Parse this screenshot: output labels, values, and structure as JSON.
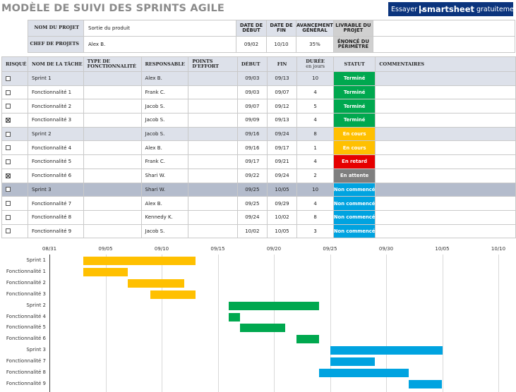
{
  "title": "MODÈLE DE SUIVI DES SPRINTS AGILE",
  "banner": {
    "prefix": "Essayer",
    "brand": "smartsheet",
    "suffix": "gratuitement.",
    "bg_color": "#0b347d"
  },
  "project": {
    "name_label": "NOM DU PROJET",
    "name_value": "Sortie du produit",
    "manager_label": "CHEF DE PROJETS",
    "manager_value": "Alex B.",
    "start_label": "DATE DE DÉBUT",
    "start_value": "09/02",
    "end_label": "DATE DE FIN",
    "end_value": "10/10",
    "progress_label": "AVANCEMENT GÉNÉRAL",
    "progress_value": "35%",
    "deliverable_label": "LIVRABLE DU PROJET",
    "deliverable_value": "",
    "scope_label": "ÉNONCÉ DU PÉRIMÈTRE",
    "scope_value": ""
  },
  "columns": {
    "risk": "RISQUÉ",
    "task": "NOM DE LA TÂCHE",
    "feature_type": "TYPE DE FONCTIONNALITÉ",
    "owner": "RESPONSABLE",
    "points": "POINTS D'EFFORT",
    "start": "DÉBUT",
    "end": "FIN",
    "duration": "DURÉE",
    "duration_sub": "en jours",
    "status": "STATUT",
    "comments": "COMMENTAIRES"
  },
  "status_colors": {
    "Terminé": "#00a84f",
    "En cours": "#ffc000",
    "En retard": "#e60000",
    "En attente": "#7f7f7f",
    "Non commencé": "#00a3e0"
  },
  "rows": [
    {
      "risk": false,
      "task": "Sprint 1",
      "owner": "Alex B.",
      "start": "09/03",
      "end": "09/13",
      "duration": "10",
      "status": "Terminé",
      "kind": "sprint"
    },
    {
      "risk": false,
      "task": "Fonctionnalité 1",
      "owner": "Frank C.",
      "start": "09/03",
      "end": "09/07",
      "duration": "4",
      "status": "Terminé",
      "kind": "feature"
    },
    {
      "risk": false,
      "task": "Fonctionnalité 2",
      "owner": "Jacob S.",
      "start": "09/07",
      "end": "09/12",
      "duration": "5",
      "status": "Terminé",
      "kind": "feature"
    },
    {
      "risk": true,
      "task": "Fonctionnalité 3",
      "owner": "Jacob S.",
      "start": "09/09",
      "end": "09/13",
      "duration": "4",
      "status": "Terminé",
      "kind": "feature"
    },
    {
      "risk": false,
      "task": "Sprint 2",
      "owner": "Jacob S.",
      "start": "09/16",
      "end": "09/24",
      "duration": "8",
      "status": "En cours",
      "kind": "sprint"
    },
    {
      "risk": false,
      "task": "Fonctionnalité 4",
      "owner": "Alex B.",
      "start": "09/16",
      "end": "09/17",
      "duration": "1",
      "status": "En cours",
      "kind": "feature"
    },
    {
      "risk": false,
      "task": "Fonctionnalité 5",
      "owner": "Frank C.",
      "start": "09/17",
      "end": "09/21",
      "duration": "4",
      "status": "En retard",
      "kind": "feature"
    },
    {
      "risk": true,
      "task": "Fonctionnalité 6",
      "owner": "Shari W.",
      "start": "09/22",
      "end": "09/24",
      "duration": "2",
      "status": "En attente",
      "kind": "feature"
    },
    {
      "risk": false,
      "task": "Sprint 3",
      "owner": "Shari W.",
      "start": "09/25",
      "end": "10/05",
      "duration": "10",
      "status": "Non commencé",
      "kind": "sprint3"
    },
    {
      "risk": false,
      "task": "Fonctionnalité 7",
      "owner": "Alex B.",
      "start": "09/25",
      "end": "09/29",
      "duration": "4",
      "status": "Non commencé",
      "kind": "feature"
    },
    {
      "risk": false,
      "task": "Fonctionnalité 8",
      "owner": "Kennedy K.",
      "start": "09/24",
      "end": "10/02",
      "duration": "8",
      "status": "Non commencé",
      "kind": "feature"
    },
    {
      "risk": false,
      "task": "Fonctionnalité 9",
      "owner": "Jacob S.",
      "start": "10/02",
      "end": "10/05",
      "duration": "3",
      "status": "Non commencé",
      "kind": "feature"
    }
  ],
  "gantt": {
    "ticks": [
      "08/31",
      "09/05",
      "09/10",
      "09/15",
      "09/20",
      "09/25",
      "09/30",
      "10/05",
      "10/10"
    ],
    "bars": [
      {
        "label": "Sprint 1",
        "start": "09/03",
        "end": "09/13",
        "color": "#ffc000"
      },
      {
        "label": "Fonctionnalité 1",
        "start": "09/03",
        "end": "09/07",
        "color": "#ffc000"
      },
      {
        "label": "Fonctionnalité 2",
        "start": "09/07",
        "end": "09/12",
        "color": "#ffc000"
      },
      {
        "label": "Fonctionnalité 3",
        "start": "09/09",
        "end": "09/13",
        "color": "#ffc000"
      },
      {
        "label": "Sprint 2",
        "start": "09/16",
        "end": "09/24",
        "color": "#00a84f"
      },
      {
        "label": "Fonctionnalité 4",
        "start": "09/16",
        "end": "09/17",
        "color": "#00a84f"
      },
      {
        "label": "Fonctionnalité 5",
        "start": "09/17",
        "end": "09/21",
        "color": "#00a84f"
      },
      {
        "label": "Fonctionnalité 6",
        "start": "09/22",
        "end": "09/24",
        "color": "#00a84f"
      },
      {
        "label": "Sprint 3",
        "start": "09/25",
        "end": "10/05",
        "color": "#00a3e0"
      },
      {
        "label": "Fonctionnalité 7",
        "start": "09/25",
        "end": "09/29",
        "color": "#00a3e0"
      },
      {
        "label": "Fonctionnalité 8",
        "start": "09/24",
        "end": "10/02",
        "color": "#00a3e0"
      },
      {
        "label": "Fonctionnalité 9",
        "start": "10/02",
        "end": "10/05",
        "color": "#00a3e0"
      }
    ]
  }
}
